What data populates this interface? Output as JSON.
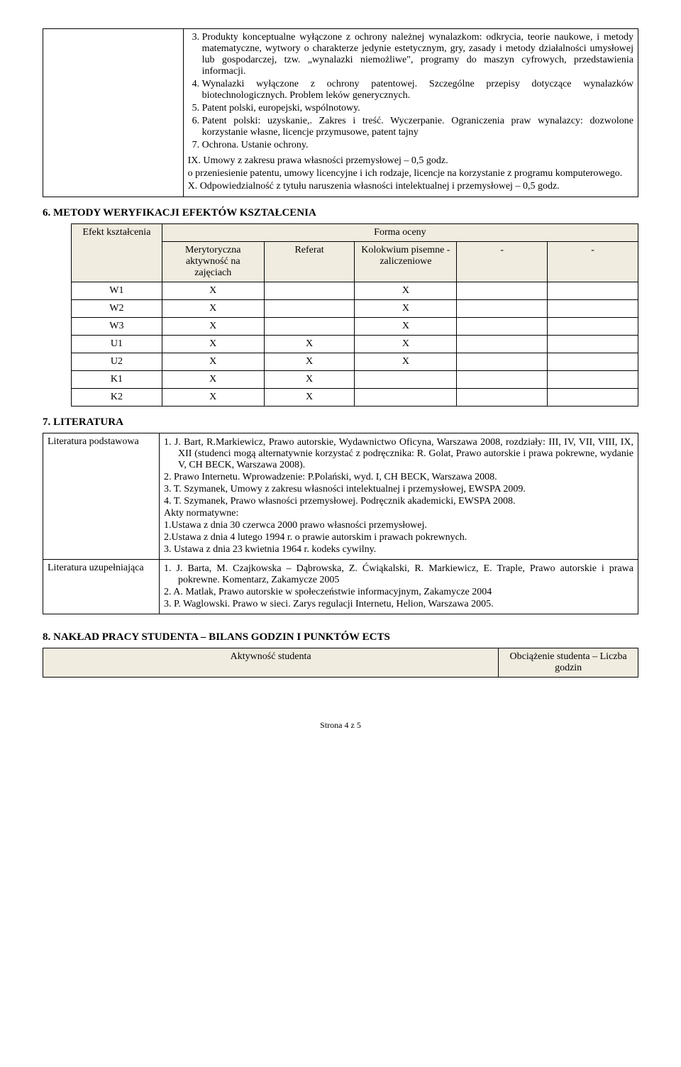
{
  "top_section": {
    "list_start": 3,
    "items": [
      "Produkty konceptualne wyłączone z ochrony należnej wynalazkom: odkrycia, teorie naukowe, i metody matematyczne, wytwory o charakterze jedynie estetycznym, gry, zasady i metody działalności umysłowej lub gospodarczej, tzw. „wynalazki niemożliwe\", programy do maszyn cyfrowych, przedstawienia informacji.",
      "Wynalazki wyłączone z ochrony patentowej. Szczególne przepisy dotyczące wynalazków biotechnologicznych. Problem leków generycznych.",
      "Patent polski, europejski, wspólnotowy.",
      "Patent polski: uzyskanie,. Zakres i treść. Wyczerpanie. Ograniczenia praw wynalazcy: dozwolone korzystanie własne, licencje przymusowe, patent tajny",
      "Ochrona. Ustanie ochrony."
    ],
    "ix_title": "IX. Umowy z zakresu prawa własności przemysłowej – 0,5 godz.",
    "ix_body": "o przeniesienie patentu, umowy licencyjne i ich rodzaje, licencje na korzystanie z programu komputerowego.",
    "x_body": "X. Odpowiedzialność z tytułu naruszenia własności intelektualnej i przemysłowej – 0,5 godz."
  },
  "section6": {
    "heading": "6. METODY WERYFIKACJI EFEKTÓW KSZTAŁCENIA",
    "header_main": "Forma oceny",
    "col1": "Efekt kształcenia",
    "cols": [
      "Merytoryczna aktywność na zajęciach",
      "Referat",
      "Kolokwium pisemne - zaliczeniowe",
      "-",
      "-"
    ],
    "rows": [
      {
        "label": "W1",
        "marks": [
          "X",
          "",
          "X",
          "",
          ""
        ]
      },
      {
        "label": "W2",
        "marks": [
          "X",
          "",
          "X",
          "",
          ""
        ]
      },
      {
        "label": "W3",
        "marks": [
          "X",
          "",
          "X",
          "",
          ""
        ]
      },
      {
        "label": "U1",
        "marks": [
          "X",
          "X",
          "X",
          "",
          ""
        ]
      },
      {
        "label": "U2",
        "marks": [
          "X",
          "X",
          "X",
          "",
          ""
        ]
      },
      {
        "label": "K1",
        "marks": [
          "X",
          "X",
          "",
          "",
          ""
        ]
      },
      {
        "label": "K2",
        "marks": [
          "X",
          "X",
          "",
          "",
          ""
        ]
      }
    ]
  },
  "section7": {
    "heading": "7. LITERATURA",
    "rows": [
      {
        "label": "Literatura podstawowa",
        "lines": [
          "1. J. Bart, R.Markiewicz, Prawo autorskie, Wydawnictwo Oficyna, Warszawa 2008, rozdziały: III, IV, VII, VIII, IX, XII (studenci mogą alternatywnie korzystać z podręcznika: R. Golat, Prawo autorskie i prawa pokrewne, wydanie V, CH BECK, Warszawa 2008).",
          "2. Prawo Internetu. Wprowadzenie: P.Polański, wyd. I, CH BECK, Warszawa 2008.",
          "3. T. Szymanek, Umowy z zakresu własności intelektualnej i przemysłowej, EWSPA 2009.",
          "4. T. Szymanek, Prawo własności przemysłowej. Podręcznik akademicki, EWSPA 2008.",
          "Akty normatywne:",
          "1.Ustawa z dnia 30 czerwca 2000  prawo własności przemysłowej.",
          "2.Ustawa  z dnia 4 lutego 1994 r. o prawie autorskim i prawach pokrewnych.",
          "3. Ustawa z dnia 23 kwietnia 1964 r. kodeks cywilny."
        ]
      },
      {
        "label": "Literatura uzupełniająca",
        "lines": [
          "1. J. Barta, M. Czajkowska – Dąbrowska, Z. Ćwiąkalski, R. Markiewicz, E. Traple, Prawo autorskie i prawa pokrewne. Komentarz, Zakamycze 2005",
          "2. A. Matlak, Prawo autorskie w społeczeństwie informacyjnym, Zakamycze 2004",
          "3. P. Waglowski. Prawo w sieci. Zarys regulacji Internetu, Helion, Warszawa 2005."
        ]
      }
    ]
  },
  "section8": {
    "heading": "8. NAKŁAD PRACY STUDENTA – BILANS GODZIN I PUNKTÓW ECTS",
    "col1": "Aktywność studenta",
    "col2": "Obciążenie studenta – Liczba godzin"
  },
  "footer": "Strona 4 z 5"
}
